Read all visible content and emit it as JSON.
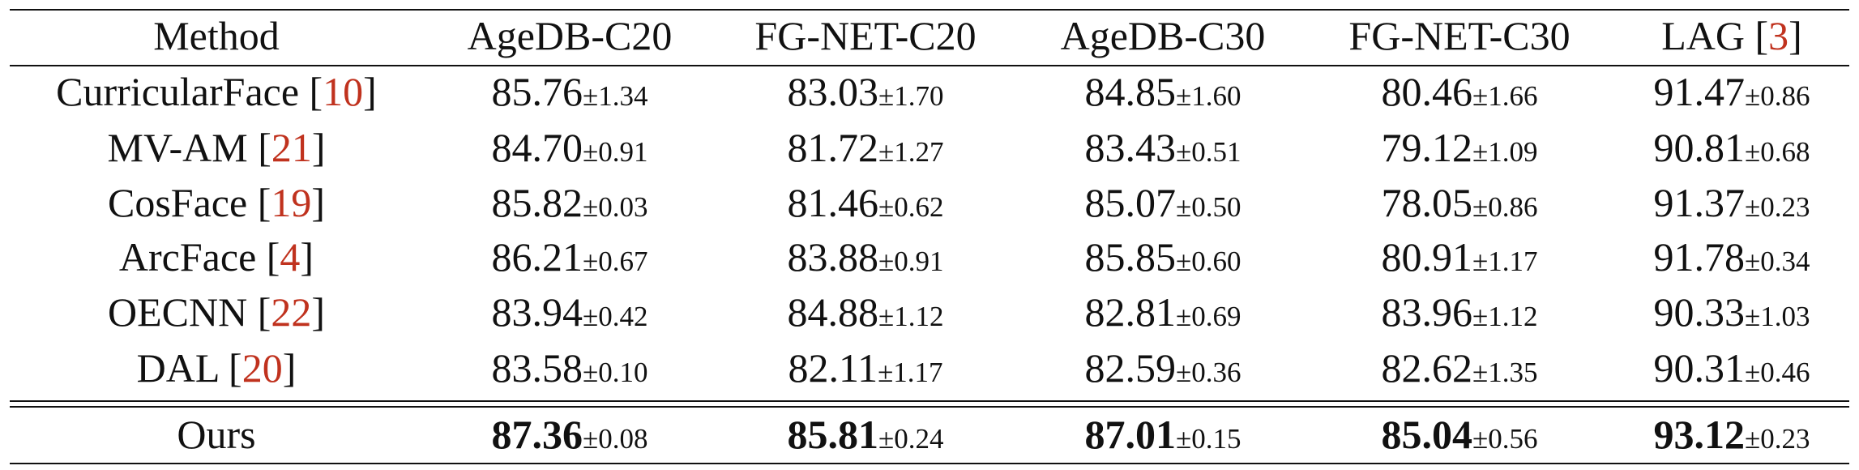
{
  "table": {
    "brackets": [
      "[",
      "]"
    ],
    "header": [
      {
        "text": "Method"
      },
      {
        "text": "AgeDB-C20"
      },
      {
        "text": "FG-NET-C20"
      },
      {
        "text": "AgeDB-C30"
      },
      {
        "text": "FG-NET-C30"
      },
      {
        "text": "LAG",
        "ref": "3"
      }
    ],
    "rows": [
      {
        "method": {
          "text": "CurricularFace",
          "ref": "10"
        },
        "cells": [
          {
            "mean": "85.76",
            "std": "±1.34"
          },
          {
            "mean": "83.03",
            "std": "±1.70"
          },
          {
            "mean": "84.85",
            "std": "±1.60"
          },
          {
            "mean": "80.46",
            "std": "±1.66"
          },
          {
            "mean": "91.47",
            "std": "±0.86"
          }
        ]
      },
      {
        "method": {
          "text": "MV-AM",
          "ref": "21"
        },
        "cells": [
          {
            "mean": "84.70",
            "std": "±0.91"
          },
          {
            "mean": "81.72",
            "std": "±1.27"
          },
          {
            "mean": "83.43",
            "std": "±0.51"
          },
          {
            "mean": "79.12",
            "std": "±1.09"
          },
          {
            "mean": "90.81",
            "std": "±0.68"
          }
        ]
      },
      {
        "method": {
          "text": "CosFace",
          "ref": "19"
        },
        "cells": [
          {
            "mean": "85.82",
            "std": "±0.03"
          },
          {
            "mean": "81.46",
            "std": "±0.62"
          },
          {
            "mean": "85.07",
            "std": "±0.50"
          },
          {
            "mean": "78.05",
            "std": "±0.86"
          },
          {
            "mean": "91.37",
            "std": "±0.23"
          }
        ]
      },
      {
        "method": {
          "text": "ArcFace",
          "ref": "4"
        },
        "cells": [
          {
            "mean": "86.21",
            "std": "±0.67"
          },
          {
            "mean": "83.88",
            "std": "±0.91"
          },
          {
            "mean": "85.85",
            "std": "±0.60"
          },
          {
            "mean": "80.91",
            "std": "±1.17"
          },
          {
            "mean": "91.78",
            "std": "±0.34"
          }
        ]
      },
      {
        "method": {
          "text": "OECNN",
          "ref": "22"
        },
        "cells": [
          {
            "mean": "83.94",
            "std": "±0.42"
          },
          {
            "mean": "84.88",
            "std": "±1.12"
          },
          {
            "mean": "82.81",
            "std": "±0.69"
          },
          {
            "mean": "83.96",
            "std": "±1.12"
          },
          {
            "mean": "90.33",
            "std": "±1.03"
          }
        ]
      },
      {
        "method": {
          "text": "DAL",
          "ref": "20"
        },
        "cells": [
          {
            "mean": "83.58",
            "std": "±0.10"
          },
          {
            "mean": "82.11",
            "std": "±1.17"
          },
          {
            "mean": "82.59",
            "std": "±0.36"
          },
          {
            "mean": "82.62",
            "std": "±1.35"
          },
          {
            "mean": "90.31",
            "std": "±0.46"
          }
        ]
      }
    ],
    "ours": {
      "method": {
        "text": "Ours"
      },
      "cells": [
        {
          "mean": "87.36",
          "std": "±0.08"
        },
        {
          "mean": "85.81",
          "std": "±0.24"
        },
        {
          "mean": "87.01",
          "std": "±0.15"
        },
        {
          "mean": "85.04",
          "std": "±0.56"
        },
        {
          "mean": "93.12",
          "std": "±0.23"
        }
      ]
    }
  }
}
